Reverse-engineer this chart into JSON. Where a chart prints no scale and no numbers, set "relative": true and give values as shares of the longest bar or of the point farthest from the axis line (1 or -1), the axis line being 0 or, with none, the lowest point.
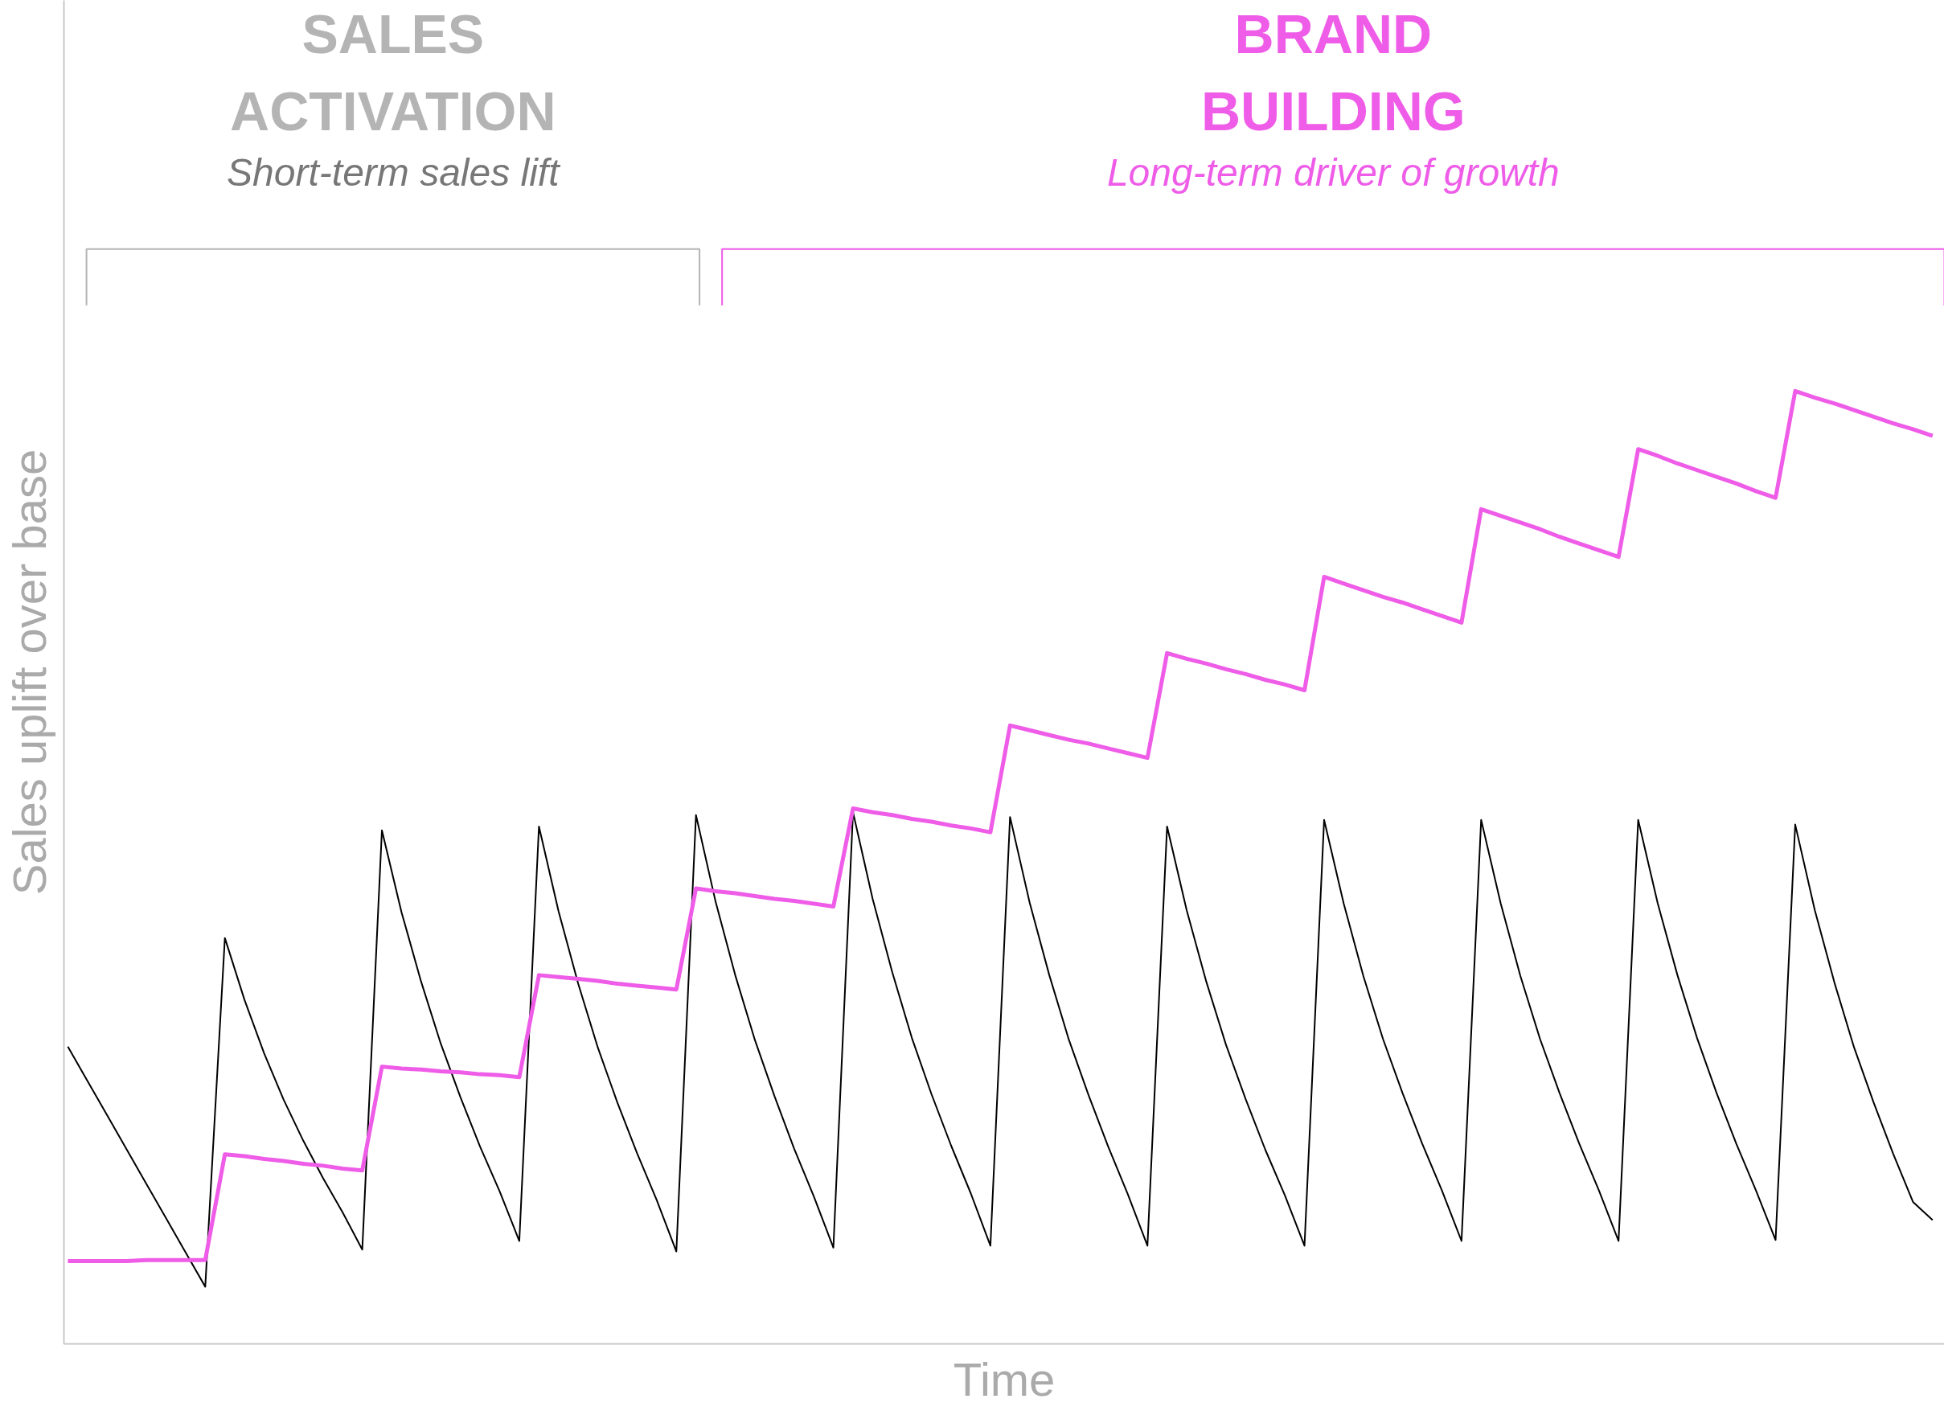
{
  "chart_data": {
    "type": "line",
    "relative": true,
    "xlabel": "Time",
    "ylabel": "Sales uplift over base",
    "categories": [
      null,
      null,
      null,
      null,
      null,
      null,
      null,
      null,
      null,
      null,
      null,
      null,
      null,
      null,
      null,
      null,
      null,
      null,
      null,
      null,
      null,
      null,
      null,
      null,
      null,
      null,
      null,
      null,
      null,
      null,
      null,
      null,
      null,
      null,
      null,
      null,
      null,
      null,
      null,
      null,
      null,
      null,
      null,
      null,
      null,
      null,
      null,
      null,
      null,
      null,
      null,
      null,
      null,
      null,
      null,
      null,
      null,
      null,
      null,
      null,
      null,
      null,
      null,
      null,
      null,
      null,
      null,
      null,
      null,
      null,
      null,
      null,
      null,
      null,
      null,
      null,
      null,
      null,
      null,
      null,
      null,
      null,
      null,
      null,
      null,
      null,
      null,
      null,
      null,
      null,
      null,
      null,
      null,
      null,
      null,
      null
    ],
    "series": [
      {
        "color": "#000000",
        "values": [
          0.312,
          0.276,
          0.24,
          0.204,
          0.168,
          0.132,
          0.096,
          0.06,
          0.426,
          0.361,
          0.305,
          0.256,
          0.213,
          0.174,
          0.138,
          0.099,
          0.539,
          0.453,
          0.38,
          0.315,
          0.259,
          0.207,
          0.16,
          0.108,
          0.543,
          0.454,
          0.378,
          0.311,
          0.253,
          0.2,
          0.151,
          0.097,
          0.555,
          0.464,
          0.387,
          0.319,
          0.26,
          0.205,
          0.155,
          0.101,
          0.558,
          0.467,
          0.39,
          0.321,
          0.262,
          0.208,
          0.158,
          0.103,
          0.553,
          0.463,
          0.387,
          0.319,
          0.261,
          0.207,
          0.157,
          0.103,
          0.543,
          0.455,
          0.38,
          0.314,
          0.257,
          0.204,
          0.156,
          0.103,
          0.55,
          0.462,
          0.386,
          0.32,
          0.263,
          0.21,
          0.161,
          0.108,
          0.55,
          0.462,
          0.386,
          0.32,
          0.263,
          0.21,
          0.161,
          0.108,
          0.55,
          0.462,
          0.387,
          0.321,
          0.263,
          0.21,
          0.161,
          0.109,
          0.545,
          0.455,
          0.379,
          0.311,
          0.253,
          0.199,
          0.149,
          0.13
        ]
      },
      {
        "color": "#ee5ce8",
        "values": [
          0.087,
          0.087,
          0.087,
          0.087,
          0.088,
          0.088,
          0.088,
          0.088,
          0.199,
          0.197,
          0.194,
          0.192,
          0.189,
          0.187,
          0.184,
          0.182,
          0.291,
          0.289,
          0.288,
          0.286,
          0.285,
          0.283,
          0.282,
          0.28,
          0.387,
          0.385,
          0.383,
          0.381,
          0.378,
          0.376,
          0.374,
          0.372,
          0.478,
          0.475,
          0.473,
          0.47,
          0.467,
          0.465,
          0.462,
          0.459,
          0.562,
          0.558,
          0.555,
          0.551,
          0.548,
          0.544,
          0.541,
          0.537,
          0.649,
          0.644,
          0.639,
          0.634,
          0.63,
          0.625,
          0.62,
          0.615,
          0.725,
          0.719,
          0.714,
          0.708,
          0.703,
          0.697,
          0.692,
          0.686,
          0.805,
          0.798,
          0.791,
          0.784,
          0.778,
          0.771,
          0.764,
          0.757,
          0.876,
          0.869,
          0.862,
          0.855,
          0.847,
          0.84,
          0.833,
          0.826,
          0.939,
          0.932,
          0.924,
          0.917,
          0.91,
          0.903,
          0.895,
          0.888,
          1.0,
          0.993,
          0.987,
          0.98,
          0.973,
          0.966,
          0.96,
          0.953
        ]
      }
    ],
    "annotations": [
      "SALES ACTIVATION",
      "Short-term sales lift",
      "BRAND BUILDING",
      "Long-term driver of growth"
    ]
  }
}
